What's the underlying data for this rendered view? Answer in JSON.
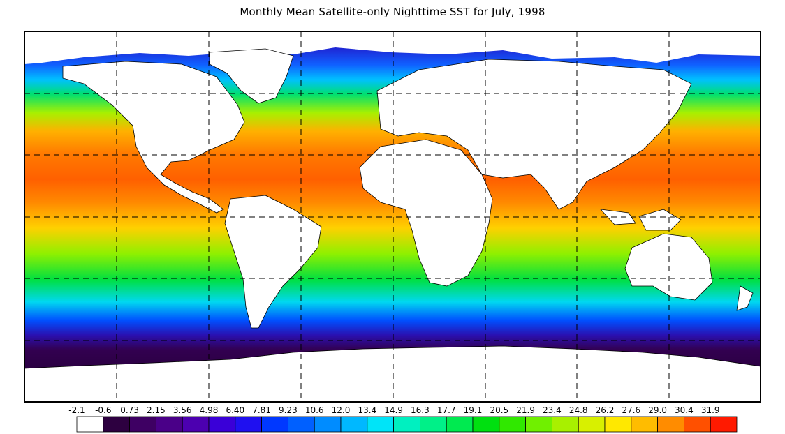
{
  "title": "Monthly Mean Satellite-only Nighttime SST for July, 1998",
  "colorbar": {
    "ticks": [
      "-2.1",
      "-0.6",
      "0.73",
      "2.15",
      "3.56",
      "4.98",
      "6.40",
      "7.81",
      "9.23",
      "10.6",
      "12.0",
      "13.4",
      "14.9",
      "16.3",
      "17.7",
      "19.1",
      "20.5",
      "21.9",
      "23.4",
      "24.8",
      "26.2",
      "27.6",
      "29.0",
      "30.4",
      "31.9"
    ],
    "colors": [
      "#ffffff",
      "#2d0040",
      "#3e0063",
      "#4a0088",
      "#4c00b0",
      "#3a00d8",
      "#1f10f0",
      "#0038ff",
      "#0060ff",
      "#008cff",
      "#00b8ff",
      "#00e4f8",
      "#00f0c0",
      "#00f088",
      "#00ea50",
      "#00e010",
      "#30e800",
      "#70f000",
      "#a8f000",
      "#d8f000",
      "#ffe800",
      "#ffbc00",
      "#ff8c00",
      "#ff5000",
      "#ff1a00"
    ]
  },
  "map": {
    "land_color": "#ffffff",
    "grid": "dashed"
  }
}
